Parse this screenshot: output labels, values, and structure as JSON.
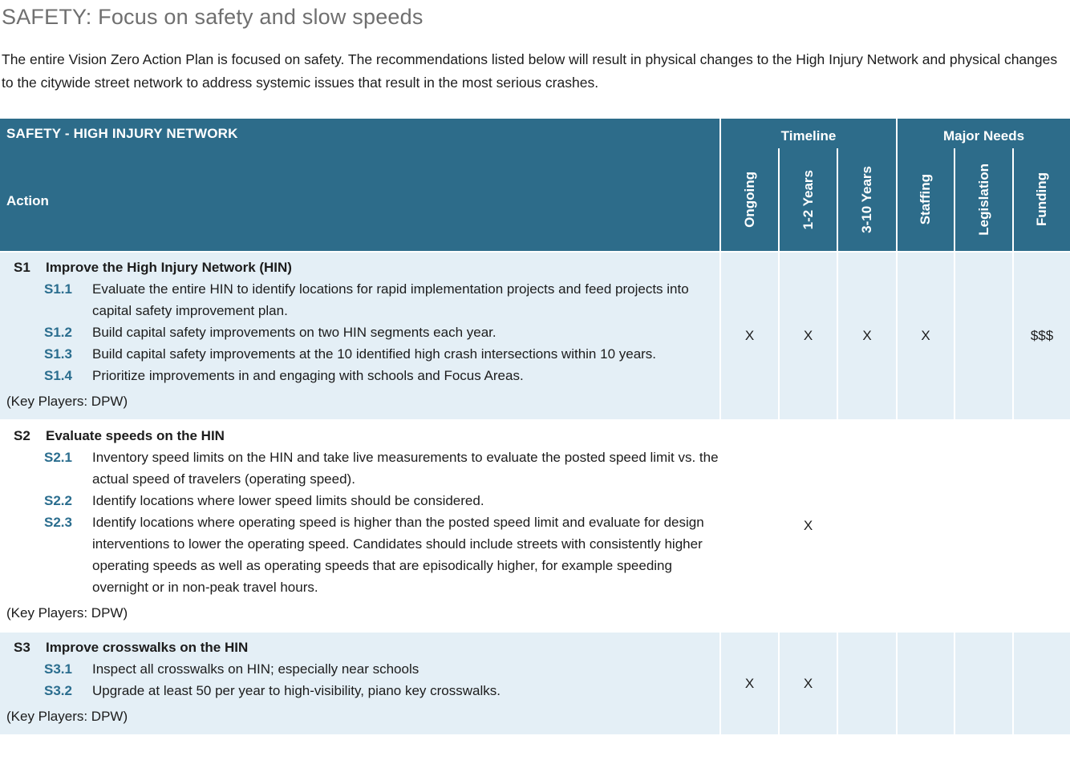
{
  "page": {
    "title": "SAFETY: Focus on safety and slow speeds",
    "intro": "The entire Vision Zero Action Plan is focused on safety. The recommendations listed below will result in physical changes to the High Injury Network and physical changes to the citywide street network to address systemic issues that result in the most serious crashes."
  },
  "table": {
    "title": "SAFETY - HIGH INJURY NETWORK",
    "action_header": "Action",
    "groups": [
      {
        "label": "Timeline",
        "columns": [
          "Ongoing",
          "1-2 Years",
          "3-10 Years"
        ]
      },
      {
        "label": "Major Needs",
        "columns": [
          "Staffing",
          "Legislation",
          "Funding"
        ]
      }
    ],
    "mark_columns": [
      "Ongoing",
      "1-2 Years",
      "3-10 Years",
      "Staffing",
      "Legislation",
      "Funding"
    ],
    "rows": [
      {
        "id": "S1",
        "title": "Improve the High Injury Network (HIN)",
        "sub_items": [
          {
            "id": "S1.1",
            "text": "Evaluate the entire HIN to identify locations for rapid implementation projects and feed projects into capital safety improvement plan."
          },
          {
            "id": "S1.2",
            "text": "Build capital safety improvements on two HIN segments each year."
          },
          {
            "id": "S1.3",
            "text": "Build capital safety improvements at the 10 identified high crash intersections within 10 years."
          },
          {
            "id": "S1.4",
            "text": "Prioritize improvements in and engaging with schools and Focus Areas."
          }
        ],
        "key_players": "(Key Players: DPW)",
        "marks": [
          "X",
          "X",
          "X",
          "X",
          "",
          "$$$"
        ]
      },
      {
        "id": "S2",
        "title": "Evaluate speeds on the HIN",
        "sub_items": [
          {
            "id": "S2.1",
            "text": "Inventory speed limits on the HIN and take live measurements to evaluate the posted speed limit vs. the actual speed of travelers (operating speed)."
          },
          {
            "id": "S2.2",
            "text": "Identify locations where lower speed limits should be considered."
          },
          {
            "id": "S2.3",
            "text": "Identify locations where operating speed is higher than the posted speed limit and evaluate for design interventions to lower the operating speed. Candidates should include streets with consistently higher operating speeds as well as operating speeds that are episodically higher, for example speeding overnight or in non-peak travel hours."
          }
        ],
        "key_players": "(Key Players: DPW)",
        "marks": [
          "",
          "X",
          "",
          "",
          "",
          ""
        ]
      },
      {
        "id": "S3",
        "title": "Improve crosswalks on the HIN",
        "sub_items": [
          {
            "id": "S3.1",
            "text": "Inspect all crosswalks on HIN; especially near schools"
          },
          {
            "id": "S3.2",
            "text": "Upgrade at least 50 per year to high-visibility, piano key crosswalks."
          }
        ],
        "key_players": "(Key Players: DPW)",
        "marks": [
          "X",
          "X",
          "",
          "",
          "",
          ""
        ]
      }
    ]
  },
  "colors": {
    "header_bg": "#2d6c8a",
    "row_shade_bg": "#e4eff6",
    "sub_number_accent": "#2a6d8e",
    "title_gray": "#6f6f6f",
    "body_text": "#1c1c1c",
    "separator": "#ffffff"
  }
}
